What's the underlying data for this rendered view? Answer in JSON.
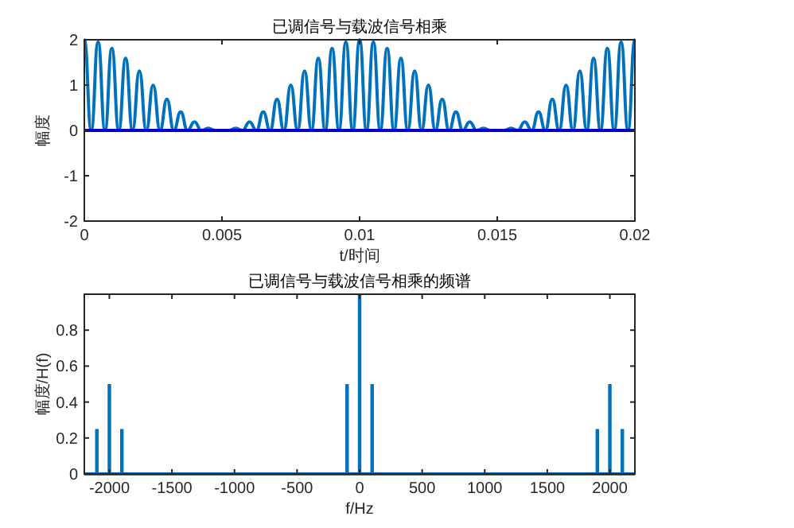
{
  "chart_data": [
    {
      "type": "line",
      "title": "已调信号与载波信号相乘",
      "xlabel": "t/时间",
      "ylabel": "幅度",
      "xlim": [
        0,
        0.02
      ],
      "ylim": [
        -2,
        2
      ],
      "xticks": [
        0,
        0.005,
        0.01,
        0.015,
        0.02
      ],
      "yticks": [
        -2,
        -1,
        0,
        1,
        2
      ],
      "grid": false,
      "series": [
        {
          "color": "#0072bd",
          "x": [
            0,
            0.00025,
            0.0005,
            0.00075,
            0.001,
            0.00125,
            0.0015,
            0.00175,
            0.002,
            0.00225,
            0.0025,
            0.00275,
            0.003,
            0.00325,
            0.0035,
            0.00375,
            0.004,
            0.00425,
            0.0045,
            0.00475,
            0.005,
            0.00525,
            0.0055,
            0.00575,
            0.006,
            0.00625,
            0.0065,
            0.00675,
            0.007,
            0.00725,
            0.0075,
            0.00775,
            0.008,
            0.00825,
            0.0085,
            0.00875,
            0.009,
            0.00925,
            0.0095,
            0.00975,
            0.01,
            0.01025,
            0.0105,
            0.01075,
            0.011,
            0.01125,
            0.0115,
            0.01175,
            0.012,
            0.01225,
            0.0125,
            0.01275,
            0.013,
            0.01325,
            0.0135,
            0.01375,
            0.014,
            0.01425,
            0.0145,
            0.01475,
            0.015,
            0.01525,
            0.0155,
            0.01575,
            0.016,
            0.01625,
            0.0165,
            0.01675,
            0.017,
            0.01725,
            0.0175,
            0.01775,
            0.018,
            0.01825,
            0.0185,
            0.01875,
            0.019,
            0.01925,
            0.0195,
            0.01975,
            0.02
          ],
          "values": [
            2,
            0,
            1.95,
            0,
            1.81,
            0,
            1.59,
            0,
            1.31,
            0,
            1,
            0,
            0.69,
            0,
            0.41,
            0,
            0.19,
            0,
            0.05,
            0,
            0,
            0,
            0.05,
            0,
            0.19,
            0,
            0.41,
            0,
            0.69,
            0,
            1,
            0,
            1.31,
            0,
            1.59,
            0,
            1.81,
            0,
            1.95,
            0,
            2,
            0,
            1.95,
            0,
            1.81,
            0,
            1.59,
            0,
            1.31,
            0,
            1,
            0,
            0.69,
            0,
            0.41,
            0,
            0.19,
            0,
            0.05,
            0,
            0,
            0,
            0.05,
            0,
            0.19,
            0,
            0.41,
            0,
            0.69,
            0,
            1,
            0,
            1.31,
            0,
            1.59,
            0,
            1.81,
            0,
            1.95,
            0,
            2
          ]
        },
        {
          "color": "#0000cc",
          "x": [
            0,
            0.02
          ],
          "values": [
            0,
            0
          ]
        }
      ]
    },
    {
      "type": "bar",
      "title": "已调信号与载波信号相乘的频谱",
      "xlabel": "f/Hz",
      "ylabel": "幅度/H(f)",
      "xlim": [
        -2200,
        2200
      ],
      "ylim": [
        0,
        1
      ],
      "xticks": [
        -2000,
        -1500,
        -1000,
        -500,
        0,
        500,
        1000,
        1500,
        2000
      ],
      "yticks": [
        0,
        0.2,
        0.4,
        0.6,
        0.8
      ],
      "grid": false,
      "series": [
        {
          "color": "#0072bd",
          "x": [
            -2100,
            -2000,
            -1900,
            -100,
            0,
            100,
            1900,
            2000,
            2100
          ],
          "values": [
            0.25,
            0.5,
            0.25,
            0.5,
            1,
            0.5,
            0.25,
            0.5,
            0.25
          ]
        },
        {
          "type": "line",
          "color": "#0072bd",
          "x": [
            -2200,
            2200
          ],
          "values": [
            0,
            0
          ]
        }
      ]
    }
  ]
}
